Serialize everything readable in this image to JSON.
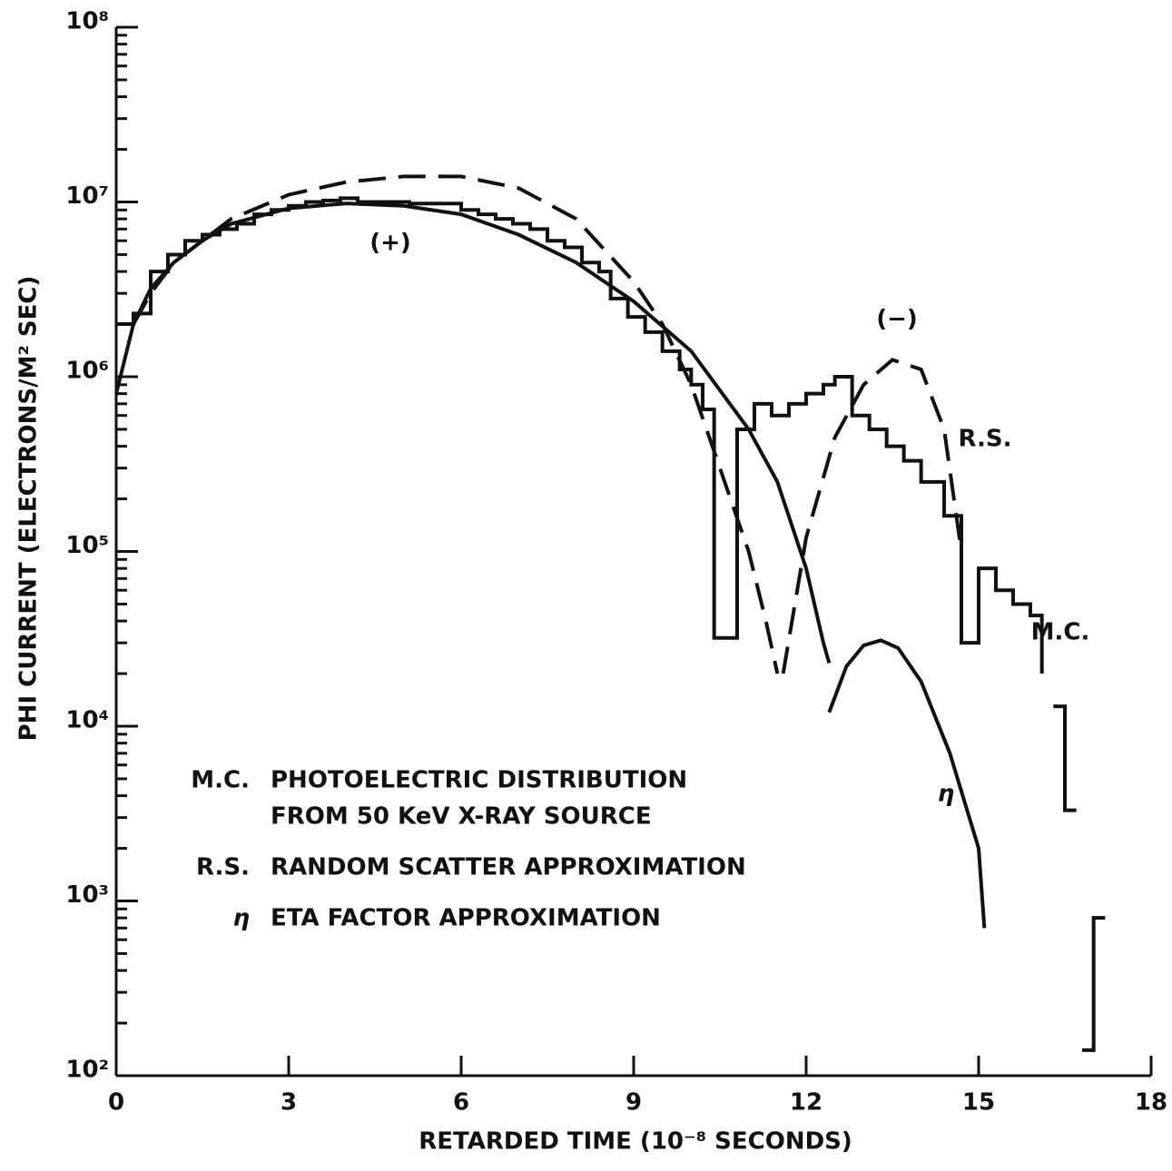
{
  "chart_data": {
    "type": "line",
    "log_y": true,
    "y_minor_ticks": true,
    "xlabel": "RETARDED TIME (10⁻⁸ SECONDS)",
    "ylabel": "PHI CURRENT (ELECTRONS/M² SEC)",
    "xlim": [
      0,
      18
    ],
    "xticks": [
      0,
      3,
      6,
      9,
      12,
      15,
      18
    ],
    "ylim": [
      100,
      100000000
    ],
    "yticks": [
      {
        "value": 100,
        "label": "10²"
      },
      {
        "value": 1000,
        "label": "10³"
      },
      {
        "value": 10000,
        "label": "10⁴"
      },
      {
        "value": 100000,
        "label": "10⁵"
      },
      {
        "value": 1000000,
        "label": "10⁶"
      },
      {
        "value": 10000000,
        "label": "10⁷"
      },
      {
        "value": 100000000,
        "label": "10⁸"
      }
    ],
    "series": [
      {
        "name": "M.C.",
        "color": "#111111",
        "style": "step",
        "x": [
          0,
          0.3,
          0.6,
          0.9,
          1.2,
          1.5,
          1.8,
          2.1,
          2.4,
          2.7,
          3.0,
          3.3,
          3.6,
          3.9,
          4.2,
          4.5,
          4.8,
          5.1,
          5.4,
          5.7,
          6.0,
          6.3,
          6.6,
          6.9,
          7.2,
          7.5,
          7.8,
          8.1,
          8.4,
          8.6,
          8.9,
          9.2,
          9.5,
          9.8,
          10.0,
          10.2,
          10.4,
          10.8,
          11.1,
          11.4,
          11.7,
          12.0,
          12.3,
          12.5,
          12.8,
          13.1,
          13.4,
          13.7,
          14.0,
          14.4,
          14.7,
          15.0,
          15.3,
          15.6,
          15.9,
          16.1,
          null,
          16.3,
          16.5,
          16.7,
          null,
          16.8,
          17.0,
          17.2
        ],
        "values": [
          2000000,
          2300000,
          4000000,
          5000000,
          6000000,
          6500000,
          7000000,
          7500000,
          8500000,
          9000000,
          9500000,
          10000000,
          10200000,
          10500000,
          10000000,
          10000000,
          10000000,
          9800000,
          9800000,
          9800000,
          9000000,
          8500000,
          8000000,
          7500000,
          7000000,
          6000000,
          5500000,
          4500000,
          4000000,
          2800000,
          2200000,
          1800000,
          1400000,
          1100000,
          900000,
          650000,
          32000,
          500000,
          700000,
          600000,
          700000,
          800000,
          900000,
          1000000,
          600000,
          500000,
          400000,
          330000,
          250000,
          160000,
          30000,
          80000,
          60000,
          50000,
          43000,
          20000,
          null,
          13000,
          3300,
          3300,
          null,
          140,
          800,
          800
        ]
      },
      {
        "name": "R.S.",
        "color": "#111111",
        "style": "dashed",
        "x": [
          0.3,
          0.6,
          1.0,
          1.5,
          2.0,
          3.0,
          4.0,
          5.0,
          6.0,
          7.0,
          8.0,
          9.0,
          9.5,
          10.0,
          10.5,
          11.0,
          11.3,
          11.5,
          null,
          11.6,
          12.0,
          12.5,
          13.0,
          13.5,
          14.0,
          14.4,
          14.7
        ],
        "values": [
          2000000,
          3000000,
          4500000,
          6000000,
          8000000,
          11000000,
          13000000,
          14000000,
          14000000,
          12000000,
          8000000,
          3500000,
          2000000,
          900000,
          300000,
          100000,
          40000,
          20000,
          null,
          20000,
          120000,
          450000,
          900000,
          1250000,
          1100000,
          500000,
          100000
        ]
      },
      {
        "name": "η",
        "color": "#111111",
        "style": "solid",
        "x": [
          0,
          0.3,
          0.6,
          1.0,
          1.5,
          2.0,
          3.0,
          4.0,
          5.0,
          6.0,
          7.0,
          8.0,
          9.0,
          10.0,
          11.0,
          11.5,
          12.0,
          12.3,
          12.4,
          null,
          12.4,
          12.7,
          13.0,
          13.3,
          13.6,
          14.0,
          14.5,
          15.0,
          15.1
        ],
        "values": [
          800000,
          2000000,
          3200000,
          4500000,
          6000000,
          7500000,
          9200000,
          9800000,
          9500000,
          8500000,
          6500000,
          4500000,
          2700000,
          1400000,
          500000,
          250000,
          80000,
          30000,
          23000,
          null,
          12000,
          22000,
          29000,
          31000,
          28000,
          18000,
          7000,
          2000,
          700
        ]
      }
    ],
    "annotations": [
      "(+)",
      "(−)",
      "R.S.",
      "M.C.",
      "η"
    ],
    "legend": [
      {
        "key": "M.C.",
        "lines": [
          "PHOTOELECTRIC DISTRIBUTION",
          "FROM 50 KeV X-RAY SOURCE"
        ]
      },
      {
        "key": "R.S.",
        "lines": [
          "RANDOM SCATTER APPROXIMATION"
        ]
      },
      {
        "key": "η",
        "lines": [
          "ETA FACTOR APPROXIMATION"
        ]
      }
    ]
  }
}
